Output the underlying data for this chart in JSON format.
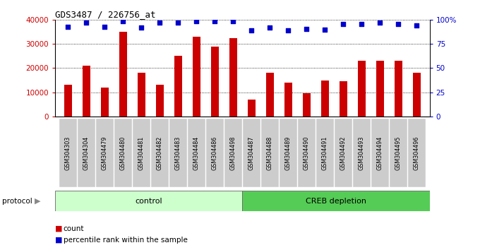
{
  "title": "GDS3487 / 226756_at",
  "categories": [
    "GSM304303",
    "GSM304304",
    "GSM304479",
    "GSM304480",
    "GSM304481",
    "GSM304482",
    "GSM304483",
    "GSM304484",
    "GSM304486",
    "GSM304498",
    "GSM304487",
    "GSM304488",
    "GSM304489",
    "GSM304490",
    "GSM304491",
    "GSM304492",
    "GSM304493",
    "GSM304494",
    "GSM304495",
    "GSM304496"
  ],
  "bar_values": [
    13000,
    21000,
    12000,
    35000,
    18000,
    13000,
    25000,
    33000,
    29000,
    32500,
    7000,
    18000,
    14000,
    9500,
    15000,
    14500,
    23000,
    23000,
    23000,
    18000
  ],
  "percentile_values": [
    93,
    97,
    93,
    99,
    92,
    97,
    97,
    99,
    99,
    99,
    89,
    92,
    89,
    91,
    90,
    96,
    96,
    97,
    96,
    94
  ],
  "bar_color": "#cc0000",
  "dot_color": "#0000cc",
  "control_count": 10,
  "control_label": "control",
  "creb_label": "CREB depletion",
  "protocol_label": "protocol",
  "control_color": "#ccffcc",
  "creb_color": "#55cc55",
  "legend_count": "count",
  "legend_percentile": "percentile rank within the sample",
  "ylim_left": [
    0,
    40000
  ],
  "ylim_right": [
    0,
    100
  ],
  "yticks_left": [
    0,
    10000,
    20000,
    30000,
    40000
  ],
  "ytick_labels_left": [
    "0",
    "10000",
    "20000",
    "30000",
    "40000"
  ],
  "yticks_right": [
    0,
    25,
    50,
    75,
    100
  ],
  "ytick_labels_right": [
    "0",
    "25",
    "50",
    "75",
    "100%"
  ],
  "xticklabel_bg": "#cccccc",
  "plot_bg_color": "#ffffff"
}
